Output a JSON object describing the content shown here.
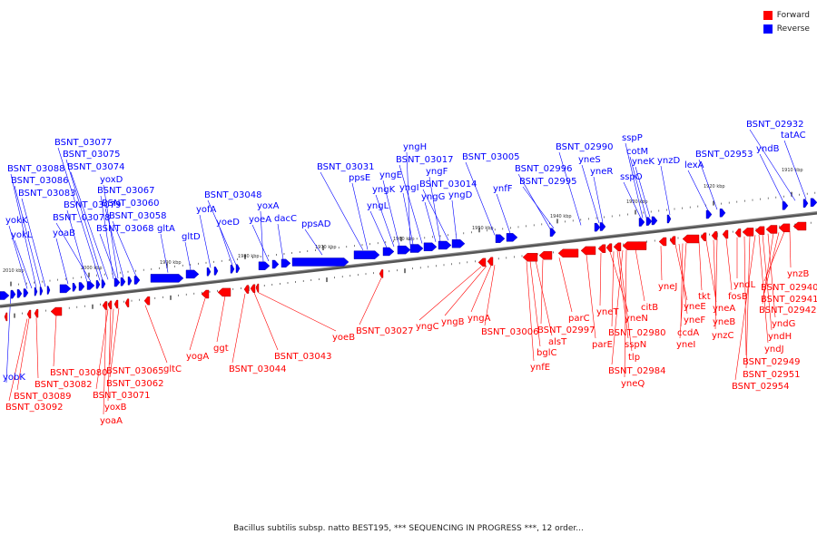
{
  "legend": {
    "forward": {
      "label": "Forward",
      "color": "#ff0000"
    },
    "reverse": {
      "label": "Reverse",
      "color": "#0000ff"
    }
  },
  "caption": "Bacillus subtilis subsp. natto BEST195, *** SEQUENCING IN PROGRESS ***, 12 order...",
  "backbone": {
    "color": "#888888"
  },
  "ticks": [
    "2010 kbp",
    "2000 kbp",
    "1990 kbp",
    "1980 kbp",
    "1970 kbp",
    "1960 kbp",
    "1950 kbp",
    "1940 kbp",
    "1930 kbp",
    "1920 kbp",
    "1910 kbp"
  ],
  "reverse_genes": [
    "BSNT_03077",
    "BSNT_03075",
    "BSNT_03074",
    "BSNT_03088",
    "BSNT_03086",
    "BSNT_03083",
    "yoxD",
    "BSNT_03067",
    "BSNT_03079",
    "BSNT_03078",
    "BSNT_03060",
    "BSNT_03058",
    "BSNT_03068",
    "yokK",
    "yokL",
    "yoaB",
    "gltA",
    "gltD",
    "yofA",
    "BSNT_03048",
    "yoeD",
    "yoxA",
    "yoeA",
    "dacC",
    "ppsAD",
    "BSNT_03031",
    "ppsE",
    "yngH",
    "yngF",
    "yngK",
    "yngL",
    "yngI",
    "yngE",
    "BSNT_03017",
    "BSNT_03014",
    "yngG",
    "yngD",
    "BSNT_03005",
    "ynfF",
    "BSNT_02996",
    "BSNT_02995",
    "BSNT_02990",
    "yneS",
    "yneR",
    "sspP",
    "cotM",
    "yneK",
    "sspO",
    "ynzD",
    "BSNT_02953",
    "lexA",
    "BSNT_02932",
    "tatAC",
    "yndB",
    "yobK"
  ],
  "forward_genes": [
    "BSNT_03080",
    "BSNT_03082",
    "BSNT_03089",
    "BSNT_03092",
    "BSNT_03065",
    "BSNT_03062",
    "BSNT_03071",
    "yoxB",
    "yoaA",
    "gltC",
    "yogA",
    "ggt",
    "BSNT_03044",
    "BSNT_03043",
    "yoeB",
    "BSNT_03027",
    "yngC",
    "yngB",
    "yngA",
    "BSNT_03006",
    "bglC",
    "alsT",
    "ynfE",
    "BSNT_02997",
    "parC",
    "parE",
    "yneT",
    "yneN",
    "BSNT_02980",
    "sspN",
    "tlp",
    "BSNT_02984",
    "yneQ",
    "citB",
    "yneJ",
    "yneE",
    "yneF",
    "ccdA",
    "yneI",
    "tkt",
    "yneA",
    "yneB",
    "ynzC",
    "fosB",
    "yndL",
    "BSNT_02949",
    "BSNT_02951",
    "BSNT_02954",
    "yndJ",
    "yndH",
    "yndG",
    "BSNT_02942",
    "BSNT_02941",
    "BSNT_02940",
    "ynzB"
  ]
}
